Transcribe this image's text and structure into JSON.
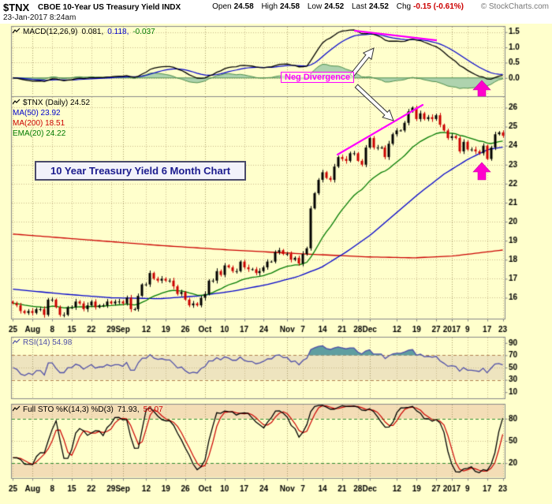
{
  "header": {
    "symbol": "$TNX",
    "description": "CBOE 10-Year US Treasury Yield INDX",
    "timestamp": "23-Jan-2017 8:24am",
    "copyright": "© StockCharts.com",
    "quote": {
      "open_label": "Open",
      "open": "24.58",
      "high_label": "High",
      "high": "24.58",
      "low_label": "Low",
      "low": "24.52",
      "last_label": "Last",
      "last": "24.52",
      "chg_label": "Chg",
      "chg": "-0.15 (-0.61%)"
    }
  },
  "panels": {
    "macd": {
      "label": "MACD(12,26,9)",
      "values": [
        "0.081,",
        "0.118,",
        "-0.037"
      ]
    },
    "price": {
      "labels": [
        "$TNX (Daily) 24.52",
        "MA(50) 23.92",
        "MA(200) 18.51",
        "EMA(20) 24.22"
      ]
    },
    "rsi": {
      "label": "RSI(14) 54.98"
    },
    "sto": {
      "label": "Full STO %K(14,3) %D(3)",
      "values": [
        "71.93,",
        "56.07"
      ]
    }
  },
  "annotations": {
    "neg_divergence": "Neg Divergence",
    "title_box": "10 Year Treasury Yield 6 Month Chart"
  },
  "colors": {
    "bg": "#ffffcc",
    "grid_dot": "#c9b98a",
    "grid_month": "#a89a6a",
    "panel_border": "#888888",
    "axis_text": "#000000",
    "candle_up": "#000000",
    "candle_down": "#cc0000",
    "ma50": "#0000cc",
    "ma200": "#cc0000",
    "ema20": "#007a00",
    "macd_line": "#000000",
    "macd_signal": "#0000cc",
    "macd_hist_fill": "#aed3ae",
    "macd_hist_edge": "#4e8f4e",
    "hist_label": "#007a00",
    "rsi": "#4f4fa8",
    "rsi_overbought_fill": "#5f9ea0",
    "rsi_band_fill": "#eee4bf",
    "rsi_band_line": "#b08050",
    "sto_k": "#000000",
    "sto_d": "#cc0000",
    "sto_band_fill": "#f3ddb6",
    "sto_band_line": "#2e8b2e",
    "annotation_pink": "#ff00ff",
    "title_text": "#1b1b8e",
    "neg_chg": "#cc0000",
    "copyright": "#777777",
    "price_label": "#000000",
    "sto_label": "#000000"
  },
  "chart_data": {
    "type": "candlestick",
    "title": "10 Year Treasury Yield 6 Month Chart",
    "x_ticks": [
      {
        "i": 0,
        "label": "25"
      },
      {
        "i": 5,
        "label": "Aug",
        "major": true
      },
      {
        "i": 10,
        "label": "8"
      },
      {
        "i": 15,
        "label": "15"
      },
      {
        "i": 20,
        "label": "22"
      },
      {
        "i": 25,
        "label": "29"
      },
      {
        "i": 28,
        "label": "Sep",
        "major": true
      },
      {
        "i": 34,
        "label": "12"
      },
      {
        "i": 39,
        "label": "19"
      },
      {
        "i": 44,
        "label": "26"
      },
      {
        "i": 49,
        "label": "Oct",
        "major": true
      },
      {
        "i": 54,
        "label": "10"
      },
      {
        "i": 59,
        "label": "17"
      },
      {
        "i": 64,
        "label": "24"
      },
      {
        "i": 70,
        "label": "Nov",
        "major": true
      },
      {
        "i": 74,
        "label": "7"
      },
      {
        "i": 79,
        "label": "14"
      },
      {
        "i": 84,
        "label": "21"
      },
      {
        "i": 88,
        "label": "28"
      },
      {
        "i": 91,
        "label": "Dec",
        "major": true
      },
      {
        "i": 98,
        "label": "12"
      },
      {
        "i": 103,
        "label": "19"
      },
      {
        "i": 108,
        "label": "27"
      },
      {
        "i": 112,
        "label": "2017",
        "major": true
      },
      {
        "i": 116,
        "label": "9"
      },
      {
        "i": 121,
        "label": "17"
      },
      {
        "i": 125,
        "label": "23"
      }
    ],
    "month_breaks": [
      5,
      28,
      49,
      70,
      91,
      112
    ],
    "price": {
      "ylim": [
        14.9,
        26.6
      ],
      "grid_values": [
        26,
        25,
        24,
        23,
        22,
        21,
        20,
        19,
        18,
        17,
        16
      ],
      "closes": [
        15.7,
        15.6,
        15.3,
        15.2,
        15.3,
        15.2,
        15.4,
        15.4,
        15.1,
        15.9,
        15.9,
        15.5,
        15.1,
        15.1,
        15.5,
        15.5,
        15.8,
        15.7,
        15.4,
        15.6,
        15.8,
        15.5,
        15.6,
        15.6,
        15.8,
        15.7,
        15.8,
        15.8,
        15.7,
        16.0,
        15.4,
        15.4,
        16.1,
        16.7,
        16.7,
        17.3,
        17.0,
        16.9,
        17.0,
        16.9,
        16.9,
        16.6,
        16.2,
        16.3,
        15.9,
        15.6,
        15.7,
        15.6,
        16.0,
        16.2,
        16.9,
        16.9,
        17.4,
        17.2,
        17.7,
        17.6,
        17.4,
        17.4,
        17.9,
        17.6,
        17.5,
        17.5,
        17.3,
        17.4,
        17.6,
        17.9,
        17.9,
        18.4,
        18.5,
        18.3,
        18.3,
        18.0,
        18.1,
        17.8,
        18.3,
        18.6,
        20.7,
        21.5,
        22.2,
        22.6,
        22.3,
        22.2,
        22.9,
        23.4,
        23.3,
        23.2,
        23.6,
        23.6,
        23.2,
        23.0,
        23.9,
        24.4,
        23.9,
        23.9,
        23.9,
        23.4,
        24.1,
        24.6,
        24.8,
        24.8,
        25.2,
        25.8,
        26.0,
        25.4,
        25.7,
        25.4,
        25.5,
        25.4,
        25.6,
        25.1,
        24.8,
        24.4,
        24.5,
        24.4,
        23.7,
        24.2,
        23.8,
        23.8,
        23.7,
        23.6,
        24.0,
        23.3,
        23.9,
        24.6,
        24.7,
        24.52
      ],
      "last_close": 24.52,
      "ma50_last": 23.92,
      "ma200_last": 18.51,
      "ema20_last": 24.22,
      "ma50_keypoints": [
        [
          0,
          16.45
        ],
        [
          0.1,
          16.2
        ],
        [
          0.2,
          16.0
        ],
        [
          0.3,
          15.95
        ],
        [
          0.38,
          16.1
        ],
        [
          0.45,
          16.35
        ],
        [
          0.52,
          16.7
        ],
        [
          0.58,
          17.1
        ],
        [
          0.63,
          17.6
        ],
        [
          0.68,
          18.4
        ],
        [
          0.73,
          19.3
        ],
        [
          0.78,
          20.4
        ],
        [
          0.83,
          21.5
        ],
        [
          0.88,
          22.5
        ],
        [
          0.93,
          23.3
        ],
        [
          0.97,
          23.8
        ],
        [
          1,
          23.92
        ]
      ],
      "ma200_keypoints": [
        [
          0,
          19.35
        ],
        [
          0.15,
          19.05
        ],
        [
          0.3,
          18.75
        ],
        [
          0.45,
          18.5
        ],
        [
          0.6,
          18.3
        ],
        [
          0.72,
          18.15
        ],
        [
          0.82,
          18.1
        ],
        [
          0.9,
          18.2
        ],
        [
          1,
          18.51
        ]
      ]
    },
    "macd": {
      "fast": 12,
      "slow": 26,
      "signal_period": 9,
      "ylim": [
        -0.6,
        1.7
      ],
      "grid_values": [
        "1.5",
        "1.0",
        "0.5",
        "0.0"
      ],
      "last_macd": 0.081,
      "last_signal": 0.118,
      "last_hist": -0.037
    },
    "rsi": {
      "period": 14,
      "last": 54.98,
      "overbought": 70,
      "oversold": 30,
      "mid": 50,
      "grid_labels": [
        90,
        70,
        50,
        30,
        10
      ]
    },
    "sto": {
      "k_params": [
        14,
        3
      ],
      "d_param": 3,
      "last_k": 71.93,
      "last_d": 56.07,
      "overbought": 80,
      "oversold": 20,
      "mid": 50,
      "grid_labels": [
        80,
        50,
        20
      ]
    }
  }
}
